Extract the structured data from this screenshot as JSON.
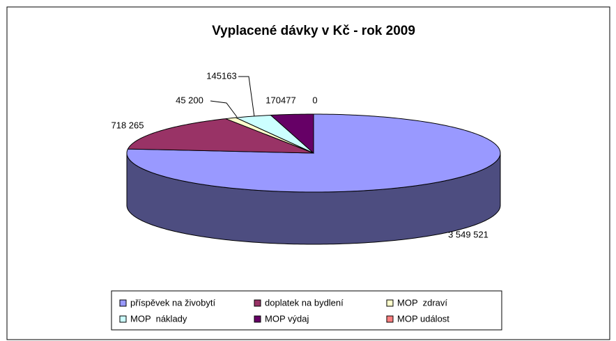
{
  "chart_data": {
    "type": "pie3d",
    "title": "Vyplacené dávky v Kč - rok 2009",
    "categories": [
      "příspěvek na živobytí",
      "doplatek na bydlení",
      "MOP  zdraví",
      "MOP  náklady",
      "MOP výdaj",
      "MOP událost"
    ],
    "values": [
      3549521,
      718265,
      45200,
      145163,
      170477,
      0
    ],
    "value_labels": [
      "3 549 521",
      "718 265",
      "45 200",
      "145163",
      "170477",
      "0"
    ],
    "colors": [
      "#9999ff",
      "#993366",
      "#ffffcc",
      "#ccffff",
      "#660066",
      "#ff8080"
    ]
  }
}
